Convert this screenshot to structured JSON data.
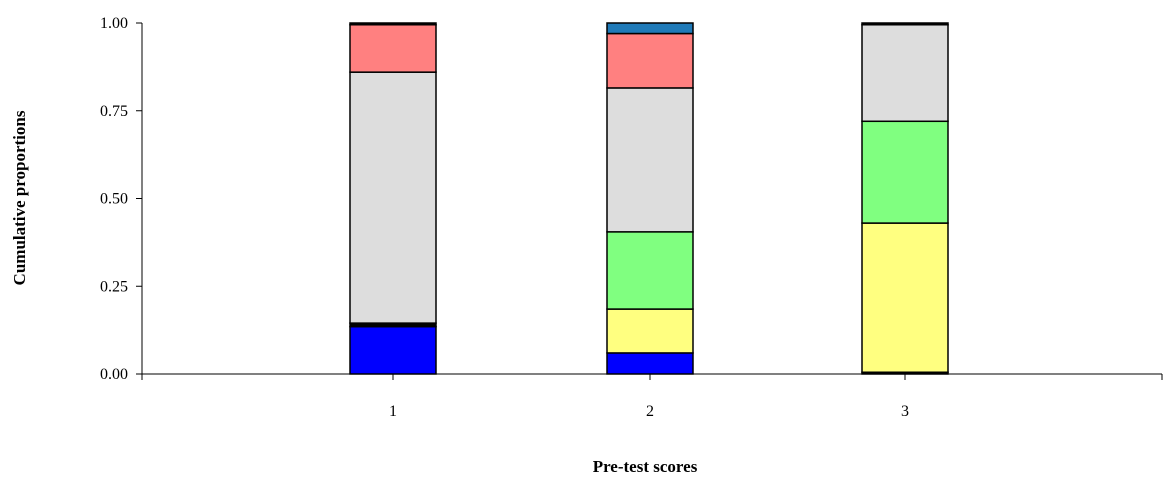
{
  "chart_data": {
    "type": "bar",
    "stacked": true,
    "xlabel": "Pre-test scores",
    "ylabel": "Cumulative proportions",
    "categories": [
      "1",
      "2",
      "3"
    ],
    "ylim": [
      0,
      1
    ],
    "yticks": [
      "0.00",
      "0.25",
      "0.50",
      "0.75",
      "1.00"
    ],
    "grid": false,
    "series": [
      {
        "color": "#0000ff",
        "values": [
          0.135,
          0.06,
          0.0
        ]
      },
      {
        "color": "#000000",
        "values": [
          0.01,
          0.0,
          0.005
        ]
      },
      {
        "color": "#ffff80",
        "values": [
          0.0,
          0.125,
          0.425
        ]
      },
      {
        "color": "#80ff80",
        "values": [
          0.0,
          0.22,
          0.29
        ]
      },
      {
        "color": "#dddddd",
        "values": [
          0.715,
          0.41,
          0.275
        ]
      },
      {
        "color": "#ff8080",
        "values": [
          0.135,
          0.155,
          0.0
        ]
      },
      {
        "color": "#1f7ab8",
        "values": [
          0.0,
          0.03,
          0.0
        ]
      },
      {
        "color": "#000000",
        "values": [
          0.005,
          0.0,
          0.005
        ]
      }
    ]
  }
}
